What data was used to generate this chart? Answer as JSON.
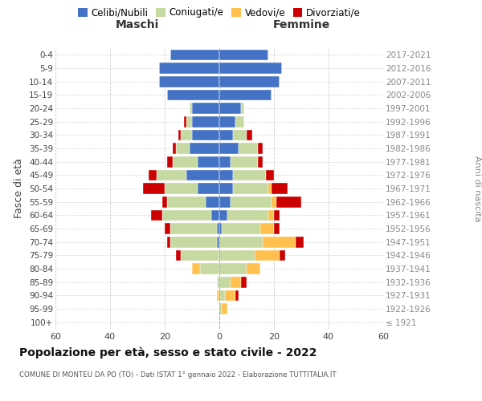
{
  "age_groups": [
    "100+",
    "95-99",
    "90-94",
    "85-89",
    "80-84",
    "75-79",
    "70-74",
    "65-69",
    "60-64",
    "55-59",
    "50-54",
    "45-49",
    "40-44",
    "35-39",
    "30-34",
    "25-29",
    "20-24",
    "15-19",
    "10-14",
    "5-9",
    "0-4"
  ],
  "birth_years": [
    "≤ 1921",
    "1922-1926",
    "1927-1931",
    "1932-1936",
    "1937-1941",
    "1942-1946",
    "1947-1951",
    "1952-1956",
    "1957-1961",
    "1962-1966",
    "1967-1971",
    "1972-1976",
    "1977-1981",
    "1982-1986",
    "1987-1991",
    "1992-1996",
    "1997-2001",
    "2002-2006",
    "2007-2011",
    "2012-2016",
    "2017-2021"
  ],
  "males_celibe": [
    0,
    0,
    0,
    0,
    0,
    0,
    1,
    1,
    3,
    5,
    8,
    12,
    8,
    11,
    10,
    10,
    10,
    19,
    22,
    22,
    18
  ],
  "males_coniugato": [
    0,
    0,
    0,
    1,
    7,
    14,
    17,
    17,
    18,
    14,
    12,
    11,
    9,
    5,
    4,
    2,
    1,
    0,
    0,
    0,
    0
  ],
  "males_vedovo": [
    0,
    0,
    1,
    0,
    3,
    0,
    0,
    0,
    0,
    0,
    0,
    0,
    0,
    0,
    0,
    0,
    0,
    0,
    0,
    0,
    0
  ],
  "males_divorziato": [
    0,
    0,
    0,
    0,
    0,
    2,
    1,
    2,
    4,
    2,
    8,
    3,
    2,
    1,
    1,
    1,
    0,
    0,
    0,
    0,
    0
  ],
  "females_nubile": [
    0,
    0,
    0,
    0,
    0,
    0,
    0,
    1,
    3,
    4,
    5,
    5,
    4,
    7,
    5,
    6,
    8,
    19,
    22,
    23,
    18
  ],
  "females_coniugata": [
    0,
    1,
    2,
    4,
    10,
    13,
    16,
    14,
    15,
    15,
    13,
    12,
    10,
    7,
    5,
    3,
    1,
    0,
    0,
    0,
    0
  ],
  "females_vedova": [
    0,
    2,
    4,
    4,
    5,
    9,
    12,
    5,
    2,
    2,
    1,
    0,
    0,
    0,
    0,
    0,
    0,
    0,
    0,
    0,
    0
  ],
  "females_divorziata": [
    0,
    0,
    1,
    2,
    0,
    2,
    3,
    2,
    2,
    9,
    6,
    3,
    2,
    2,
    2,
    0,
    0,
    0,
    0,
    0,
    0
  ],
  "colors_celibe": "#4472c4",
  "colors_coniugato": "#c5d9a0",
  "colors_vedovo": "#ffc04d",
  "colors_divorziato": "#cc0000",
  "xlim": 60,
  "title": "Popolazione per età, sesso e stato civile - 2022",
  "subtitle": "COMUNE DI MONTEU DA PO (TO) - Dati ISTAT 1° gennaio 2022 - Elaborazione TUTTITALIA.IT",
  "ylabel_left": "Fasce di età",
  "ylabel_right": "Anni di nascita",
  "label_maschi": "Maschi",
  "label_femmine": "Femmine",
  "legend_labels": [
    "Celibi/Nubili",
    "Coniugati/e",
    "Vedovi/e",
    "Divorziati/e"
  ],
  "bg_color": "#ffffff",
  "grid_color": "#cccccc"
}
